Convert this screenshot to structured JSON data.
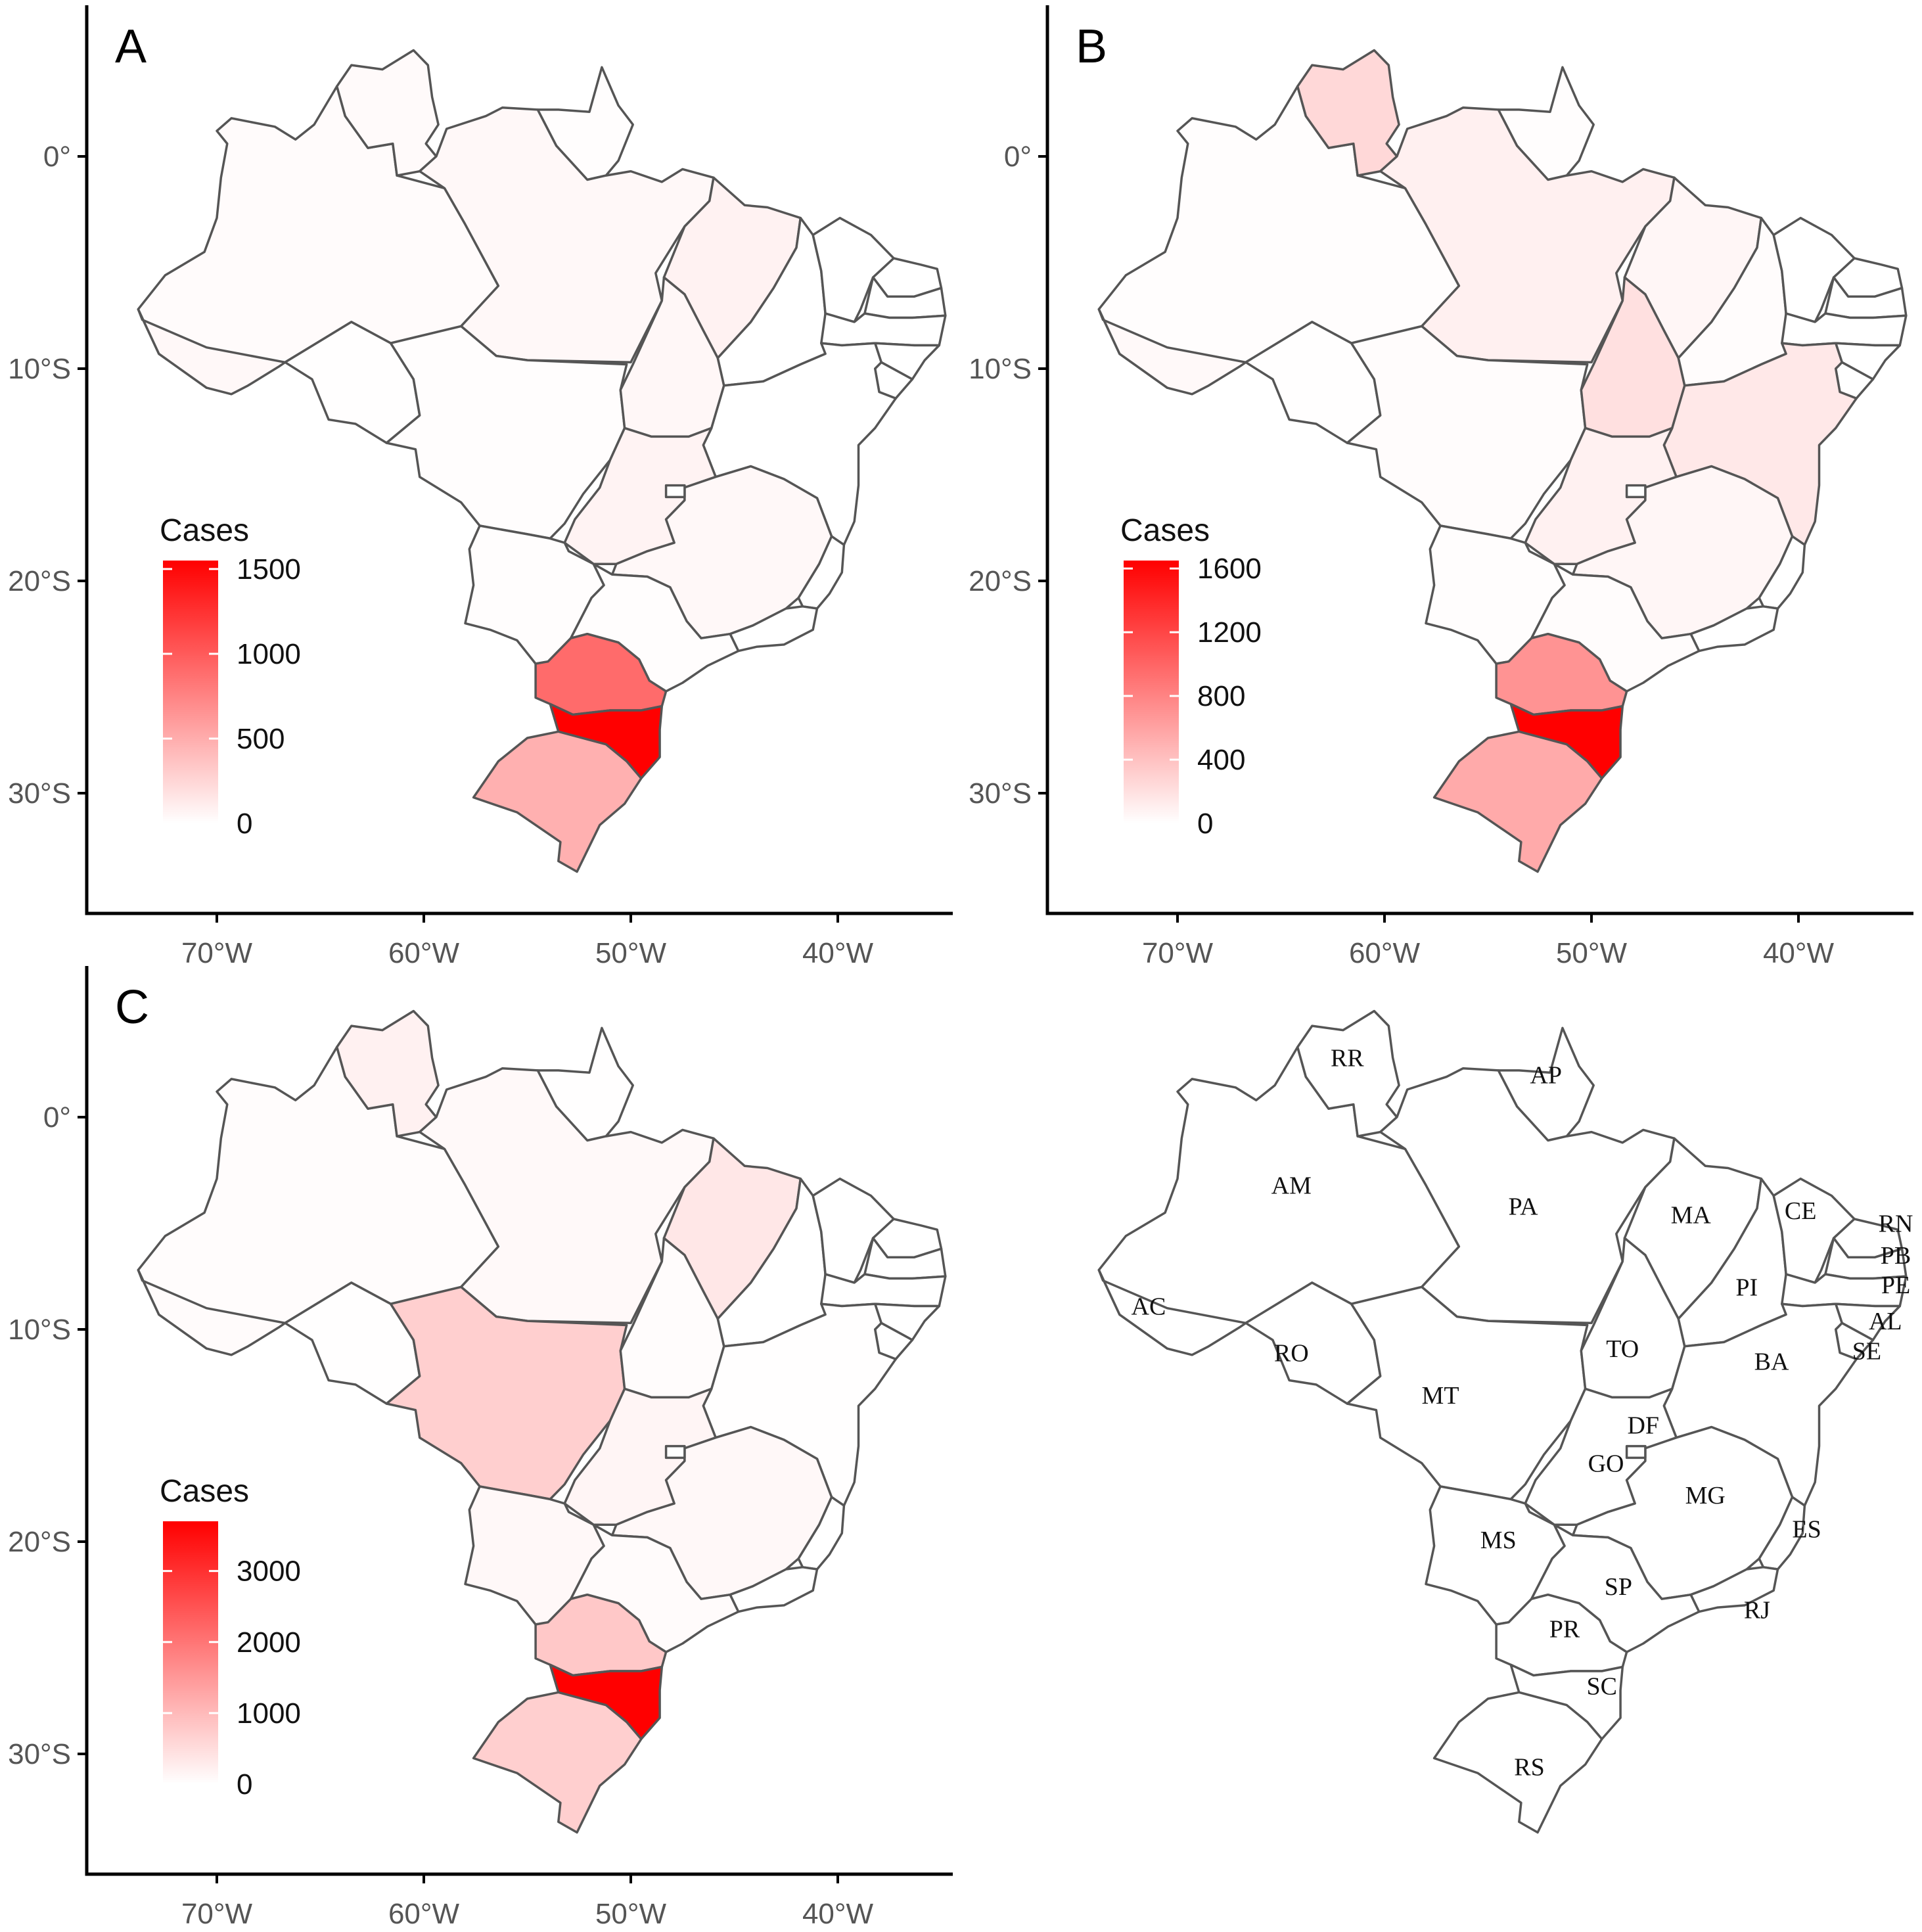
{
  "figure": {
    "panels": [
      {
        "id": "A",
        "letter": "A",
        "legend": {
          "title": "Cases",
          "max": 1550,
          "ticks": [
            "1500",
            "1000",
            "500",
            "0"
          ],
          "tick_values": [
            1500,
            1000,
            500,
            0
          ]
        },
        "values": {
          "AM": 25,
          "RR": 30,
          "AP": 10,
          "PA": 40,
          "AC": 45,
          "RO": 5,
          "MT": 15,
          "MA": 80,
          "TO": 50,
          "PI": 0,
          "CE": 0,
          "RN": 0,
          "PB": 0,
          "PE": 0,
          "AL": 0,
          "SE": 0,
          "BA": 0,
          "GO": 70,
          "DF": 0,
          "MG": 40,
          "MS": 10,
          "SP": 10,
          "ES": 0,
          "RJ": 0,
          "PR": 900,
          "SC": 1550,
          "RS": 480
        }
      },
      {
        "id": "B",
        "letter": "B",
        "legend": {
          "title": "Cases",
          "max": 1650,
          "ticks": [
            "1600",
            "1200",
            "800",
            "400",
            "0"
          ],
          "tick_values": [
            1600,
            1200,
            800,
            400,
            0
          ]
        },
        "values": {
          "AM": 10,
          "RR": 250,
          "AP": 10,
          "PA": 100,
          "AC": 40,
          "RO": 5,
          "MT": 20,
          "MA": 60,
          "TO": 200,
          "PI": 20,
          "CE": 0,
          "RN": 0,
          "PB": 0,
          "PE": 0,
          "AL": 0,
          "SE": 0,
          "BA": 150,
          "GO": 90,
          "DF": 0,
          "MG": 60,
          "MS": 10,
          "SP": 20,
          "ES": 0,
          "RJ": 0,
          "PR": 700,
          "SC": 1650,
          "RS": 550
        }
      },
      {
        "id": "C",
        "letter": "C",
        "legend": {
          "title": "Cases",
          "max": 3700,
          "ticks": [
            "3000",
            "2000",
            "1000",
            "0"
          ],
          "tick_values": [
            3000,
            2000,
            1000,
            0
          ]
        },
        "values": {
          "AM": 50,
          "RR": 200,
          "AP": 10,
          "PA": 80,
          "AC": 60,
          "RO": 10,
          "MT": 700,
          "MA": 350,
          "TO": 50,
          "PI": 0,
          "CE": 0,
          "RN": 0,
          "PB": 0,
          "PE": 0,
          "AL": 0,
          "SE": 0,
          "BA": 10,
          "GO": 150,
          "DF": 0,
          "MG": 100,
          "MS": 100,
          "SP": 60,
          "ES": 0,
          "RJ": 0,
          "PR": 800,
          "SC": 3700,
          "RS": 700
        }
      },
      {
        "id": "D",
        "letter": "",
        "legend": null,
        "values": {}
      }
    ],
    "x_ticks": [
      "70°W",
      "60°W",
      "50°W",
      "40°W"
    ],
    "x_tick_values": [
      -70,
      -60,
      -50,
      -40
    ],
    "y_ticks": [
      "0°",
      "10°S",
      "20°S",
      "30°S"
    ],
    "y_tick_values": [
      0,
      -10,
      -20,
      -30
    ],
    "colors": {
      "high": "#ff0000",
      "low": "#ffffff",
      "border": "#555555",
      "axis": "#000000"
    },
    "state_abbreviations": [
      "RR",
      "AP",
      "AM",
      "PA",
      "MA",
      "CE",
      "RN",
      "PB",
      "PE",
      "AL",
      "SE",
      "AC",
      "PI",
      "RO",
      "TO",
      "BA",
      "MT",
      "DF",
      "GO",
      "MG",
      "ES",
      "MS",
      "SP",
      "RJ",
      "PR",
      "SC",
      "RS"
    ]
  },
  "chart_data": [
    {
      "type": "map",
      "panel": "A",
      "legend_title": "Cases",
      "color_scale_ticks": [
        0,
        500,
        1000,
        1500
      ],
      "region_values": {
        "AM": 25,
        "RR": 30,
        "AP": 10,
        "PA": 40,
        "AC": 45,
        "RO": 5,
        "MT": 15,
        "MA": 80,
        "TO": 50,
        "PI": 0,
        "CE": 0,
        "RN": 0,
        "PB": 0,
        "PE": 0,
        "AL": 0,
        "SE": 0,
        "BA": 0,
        "GO": 70,
        "DF": 0,
        "MG": 40,
        "MS": 10,
        "SP": 10,
        "ES": 0,
        "RJ": 0,
        "PR": 900,
        "SC": 1550,
        "RS": 480
      },
      "x_ticks": [
        "70°W",
        "60°W",
        "50°W",
        "40°W"
      ],
      "y_ticks": [
        "0°",
        "10°S",
        "20°S",
        "30°S"
      ]
    },
    {
      "type": "map",
      "panel": "B",
      "legend_title": "Cases",
      "color_scale_ticks": [
        0,
        400,
        800,
        1200,
        1600
      ],
      "region_values": {
        "AM": 10,
        "RR": 250,
        "AP": 10,
        "PA": 100,
        "AC": 40,
        "RO": 5,
        "MT": 20,
        "MA": 60,
        "TO": 200,
        "PI": 20,
        "CE": 0,
        "RN": 0,
        "PB": 0,
        "PE": 0,
        "AL": 0,
        "SE": 0,
        "BA": 150,
        "GO": 90,
        "DF": 0,
        "MG": 60,
        "MS": 10,
        "SP": 20,
        "ES": 0,
        "RJ": 0,
        "PR": 700,
        "SC": 1650,
        "RS": 550
      },
      "x_ticks": [
        "70°W",
        "60°W",
        "50°W",
        "40°W"
      ],
      "y_ticks": [
        "0°",
        "10°S",
        "20°S",
        "30°S"
      ]
    },
    {
      "type": "map",
      "panel": "C",
      "legend_title": "Cases",
      "color_scale_ticks": [
        0,
        1000,
        2000,
        3000
      ],
      "region_values": {
        "AM": 50,
        "RR": 200,
        "AP": 10,
        "PA": 80,
        "AC": 60,
        "RO": 10,
        "MT": 700,
        "MA": 350,
        "TO": 50,
        "PI": 0,
        "CE": 0,
        "RN": 0,
        "PB": 0,
        "PE": 0,
        "AL": 0,
        "SE": 0,
        "BA": 10,
        "GO": 150,
        "DF": 0,
        "MG": 100,
        "MS": 100,
        "SP": 60,
        "ES": 0,
        "RJ": 0,
        "PR": 800,
        "SC": 3700,
        "RS": 700
      },
      "x_ticks": [
        "70°W",
        "60°W",
        "50°W",
        "40°W"
      ],
      "y_ticks": [
        "0°",
        "10°S",
        "20°S",
        "30°S"
      ]
    },
    {
      "type": "map",
      "panel": "D",
      "region_labels": [
        "RR",
        "AP",
        "AM",
        "PA",
        "MA",
        "CE",
        "RN",
        "PB",
        "PE",
        "AL",
        "SE",
        "AC",
        "PI",
        "RO",
        "TO",
        "BA",
        "MT",
        "DF",
        "GO",
        "MG",
        "ES",
        "MS",
        "SP",
        "RJ",
        "PR",
        "SC",
        "RS"
      ]
    }
  ]
}
